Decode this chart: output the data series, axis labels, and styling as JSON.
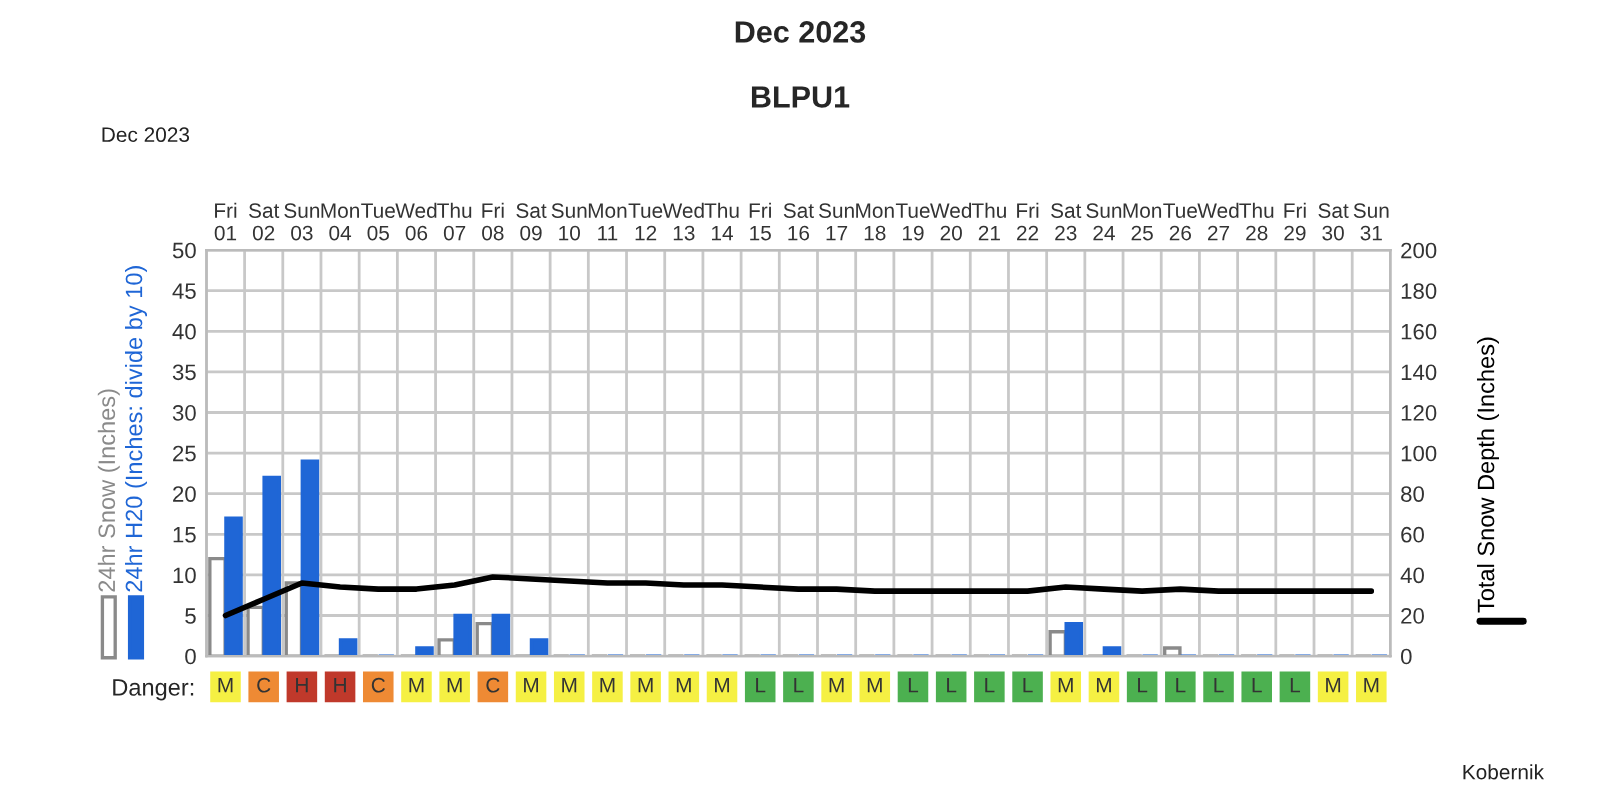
{
  "chart_data": [
    {
      "type": "bar",
      "title": "Dec 2023",
      "subtitle": "BLPU1",
      "categories": [
        "Fri 01",
        "Sat 02",
        "Sun 03",
        "Mon 04",
        "Tue 05",
        "Wed 06",
        "Thu 07",
        "Fri 08",
        "Sat 09",
        "Sun 10",
        "Mon 11",
        "Tue 12",
        "Wed 13",
        "Thu 14",
        "Fri 15",
        "Sat 16",
        "Sun 17",
        "Mon 18",
        "Tue 19",
        "Wed 20",
        "Thu 21",
        "Fri 22",
        "Sat 23",
        "Sun 24",
        "Mon 25",
        "Tue 26",
        "Wed 27",
        "Thu 28",
        "Fri 29",
        "Sat 30",
        "Sun 31"
      ],
      "series": [
        {
          "name": "24hr Snow (Inches)",
          "color": "#8a8a8a",
          "values": [
            12,
            6,
            9,
            0,
            0,
            0,
            2,
            4,
            0,
            0,
            0,
            0,
            0,
            0,
            0,
            0,
            0,
            0,
            0,
            0,
            0,
            0,
            3,
            0,
            0,
            1,
            0,
            0,
            0,
            0,
            0
          ]
        },
        {
          "name": "24hr H20 (Inches: divide by 10)",
          "color": "#1f66d6",
          "values": [
            17,
            22,
            24,
            2,
            0,
            1,
            5,
            5,
            2,
            0,
            0,
            0,
            0,
            0,
            0,
            0,
            0,
            0,
            0,
            0,
            0,
            0,
            4,
            1,
            0,
            0,
            0,
            0,
            0,
            0,
            0
          ]
        },
        {
          "name": "Total Snow Depth (Inches)",
          "type": "line",
          "axis": "y2",
          "color": "#000000",
          "values": [
            20,
            28,
            36,
            34,
            33,
            33,
            35,
            39,
            38,
            37,
            36,
            36,
            35,
            35,
            34,
            33,
            33,
            32,
            32,
            32,
            32,
            32,
            34,
            33,
            32,
            33,
            32,
            32,
            32,
            32,
            32
          ]
        }
      ],
      "ylim": [
        0,
        50
      ],
      "yticks": [
        0,
        5,
        10,
        15,
        20,
        25,
        30,
        35,
        40,
        45,
        50
      ],
      "y2lim": [
        0,
        200
      ],
      "y2ticks": [
        0,
        20,
        40,
        60,
        80,
        100,
        120,
        140,
        160,
        180,
        200
      ],
      "grid": true,
      "legend": "left",
      "annotations": [
        "Dec 2023",
        "Kobernik"
      ]
    },
    {
      "type": "other",
      "categories": [
        null,
        null,
        null,
        null,
        null,
        null,
        null,
        null,
        null,
        null,
        null,
        null,
        null,
        null,
        null,
        null,
        null,
        null,
        null,
        null,
        null,
        null,
        null,
        null,
        null,
        null,
        null,
        null,
        null,
        null,
        null
      ],
      "y_categories": [
        "Danger:"
      ],
      "cell_labels": [
        [
          "M",
          "C",
          "H",
          "H",
          "C",
          "M",
          "M",
          "C",
          "M",
          "M",
          "M",
          "M",
          "M",
          "M",
          "L",
          "L",
          "M",
          "M",
          "L",
          "L",
          "L",
          "L",
          "M",
          "M",
          "L",
          "L",
          "L",
          "L",
          "L",
          "M",
          "M"
        ]
      ],
      "colors": [
        "#f5f043",
        "#ee8a34",
        "#c0392b",
        "#c0392b",
        "#ee8a34",
        "#f5f043",
        "#f5f043",
        "#ee8a34",
        "#f5f043",
        "#f5f043",
        "#f5f043",
        "#f5f043",
        "#f5f043",
        "#f5f043",
        "#4cb050",
        "#4cb050",
        "#f5f043",
        "#f5f043",
        "#4cb050",
        "#4cb050",
        "#4cb050",
        "#4cb050",
        "#f5f043",
        "#f5f043",
        "#4cb050",
        "#4cb050",
        "#4cb050",
        "#4cb050",
        "#4cb050",
        "#f5f043",
        "#f5f043"
      ]
    }
  ]
}
